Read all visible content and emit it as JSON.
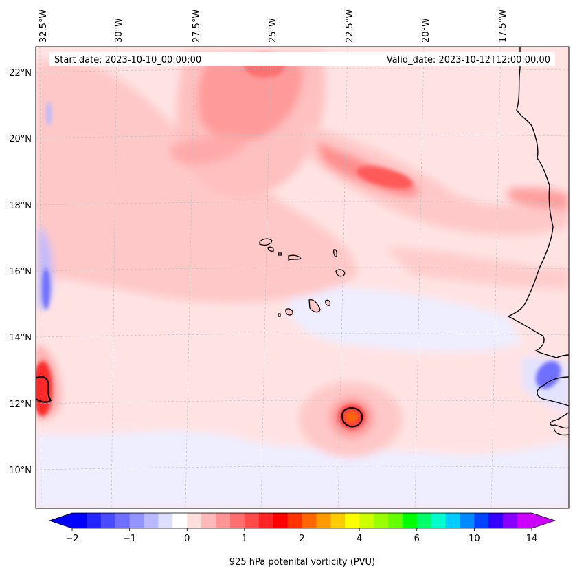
{
  "header": {
    "start_date": "Start date: 2023-10-10_00:00:00",
    "valid_date": "Valid_date: 2023-10-12T12:00:00.00"
  },
  "longitude_labels": [
    {
      "value": -32.5,
      "label": "32.5°W"
    },
    {
      "value": -30.0,
      "label": "30°W"
    },
    {
      "value": -27.5,
      "label": "27.5°W"
    },
    {
      "value": -25.0,
      "label": "25°W"
    },
    {
      "value": -22.5,
      "label": "22.5°W"
    },
    {
      "value": -20.0,
      "label": "20°W"
    },
    {
      "value": -17.5,
      "label": "17.5°W"
    }
  ],
  "latitude_labels": [
    {
      "value": 22,
      "label": "22°N"
    },
    {
      "value": 20,
      "label": "20°N"
    },
    {
      "value": 18,
      "label": "18°N"
    },
    {
      "value": 16,
      "label": "16°N"
    },
    {
      "value": 14,
      "label": "14°N"
    },
    {
      "value": 12,
      "label": "12°N"
    },
    {
      "value": 10,
      "label": "10°N"
    }
  ],
  "colorbar": {
    "label": "925 hPa potenital vorticity (PVU)",
    "tick_labels": [
      {
        "value": -2,
        "label": "−2"
      },
      {
        "value": -1,
        "label": "−1"
      },
      {
        "value": 0,
        "label": "0"
      },
      {
        "value": 1,
        "label": "1"
      },
      {
        "value": 2,
        "label": "2"
      },
      {
        "value": 4,
        "label": "4"
      },
      {
        "value": 6,
        "label": "6"
      },
      {
        "value": 10,
        "label": "10"
      },
      {
        "value": 14,
        "label": "14"
      }
    ],
    "colors": [
      "#0000ff",
      "#2525ff",
      "#4a4aff",
      "#6f6fff",
      "#9494ff",
      "#b9b9ff",
      "#dedeff",
      "#ffffff",
      "#ffdede",
      "#ffb9b9",
      "#ff9494",
      "#ff6f6f",
      "#ff4a4a",
      "#ff2525",
      "#ff0000",
      "#ff3300",
      "#ff6600",
      "#ff9900",
      "#ffcc00",
      "#ffff00",
      "#ccff00",
      "#99ff00",
      "#66ff00",
      "#00ff00",
      "#00ff66",
      "#00ffcc",
      "#00ccff",
      "#0088ff",
      "#0044ff",
      "#3300ff",
      "#8800ff",
      "#cc00ff"
    ],
    "under_color": "#0000ff",
    "over_color": "#cc00ff"
  },
  "field_colors": {
    "pale_pink": "#ffdede",
    "light_pink": "#ffc8c8",
    "pink": "#ffaaaa",
    "salmon": "#ff7f7f",
    "red": "#ff4a4a",
    "pale_blue": "#eeeeff",
    "blue": "#6f6fff",
    "coast": "#000000"
  }
}
